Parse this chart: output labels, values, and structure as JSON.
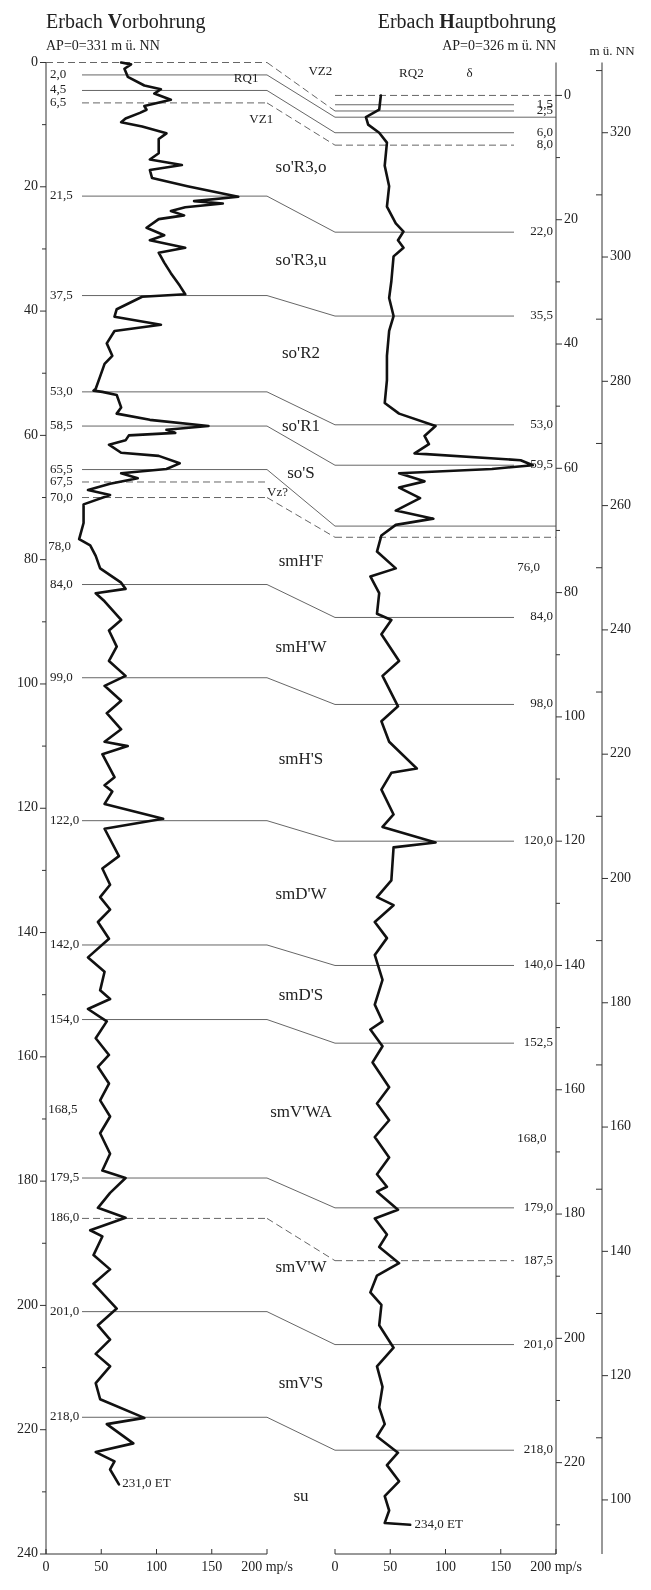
{
  "chart_data": [
    {
      "type": "line",
      "title": "Erbach Vorbohrung",
      "subtitle": "AP=0=331 m ü. NN",
      "xlim": [
        0,
        200
      ],
      "xticks": [
        0,
        50,
        100,
        150,
        {
          "value": 200,
          "label": "200 mp/s"
        }
      ],
      "ylim": [
        240,
        0
      ],
      "yticks": [
        0,
        {
          "value": 10,
          "label": null
        },
        20,
        {
          "value": 30,
          "label": null
        },
        40,
        {
          "value": 50,
          "label": null
        },
        60,
        {
          "value": 70,
          "label": null
        },
        80,
        {
          "value": 90,
          "label": null
        },
        100,
        {
          "value": 110,
          "label": null
        },
        120,
        {
          "value": 130,
          "label": null
        },
        140,
        {
          "value": 150,
          "label": null
        },
        160,
        {
          "value": 170,
          "label": null
        },
        180,
        {
          "value": 190,
          "label": null
        },
        200,
        {
          "value": 210,
          "label": null
        },
        220,
        {
          "value": 230,
          "label": null
        },
        240
      ],
      "series": [
        {
          "color": "#111111",
          "x": [
            68,
            77,
            71,
            74,
            89,
            104,
            98,
            113,
            89,
            91,
            85,
            72,
            68,
            87,
            109,
            102,
            102,
            94,
            123,
            94,
            96,
            128,
            174,
            134,
            160,
            126,
            113,
            125,
            102,
            91,
            107,
            94,
            126,
            102,
            107,
            113,
            121,
            126,
            87,
            64,
            62,
            104,
            62,
            55,
            60,
            53,
            49,
            45,
            43,
            51,
            64,
            68,
            64,
            94,
            147,
            109,
            117,
            75,
            72,
            57,
            68,
            102,
            121,
            109,
            68,
            83,
            58,
            38,
            58,
            34,
            34,
            30,
            40,
            45,
            49,
            68,
            72,
            45,
            53,
            68,
            57,
            64,
            57,
            72,
            53,
            68,
            55,
            68,
            53,
            74,
            51,
            62,
            53,
            60,
            53,
            106,
            53,
            66,
            51,
            58,
            49,
            58,
            47,
            57,
            38,
            53,
            49,
            58,
            38,
            55,
            45,
            57,
            47,
            57,
            49,
            58,
            49,
            58,
            51,
            72,
            58,
            47,
            72,
            40,
            51,
            43,
            58,
            43,
            64,
            47,
            58,
            45,
            58,
            45,
            49,
            89,
            55,
            79,
            45,
            62,
            58,
            66
          ],
          "values": [
            0,
            0.3,
            1,
            2.3,
            3.7,
            4.3,
            5,
            6,
            7,
            7.6,
            8.1,
            9,
            9.6,
            10.3,
            11.4,
            12.3,
            14.6,
            15.6,
            16.5,
            17.3,
            18.6,
            19.9,
            21.6,
            22.3,
            22.7,
            23.3,
            23.9,
            24.6,
            25.2,
            26.6,
            27.8,
            28.6,
            29.8,
            30.6,
            32.2,
            33.9,
            35.9,
            37.3,
            37.7,
            39.7,
            40.9,
            42.2,
            43.2,
            45.2,
            47.2,
            48.5,
            50.5,
            52.5,
            52.8,
            53,
            53.5,
            55.5,
            56.5,
            57.5,
            58.5,
            59.1,
            59.6,
            60,
            60.8,
            61.5,
            62.8,
            63.3,
            64.5,
            65.4,
            66.1,
            66.9,
            67.8,
            68.8,
            69.6,
            71.1,
            74.1,
            76.7,
            77.7,
            79.4,
            81.4,
            83.7,
            84.7,
            85.4,
            86.7,
            89.7,
            91.4,
            94,
            96.3,
            98.7,
            100.3,
            102.7,
            104.7,
            107.3,
            109.3,
            110,
            111.3,
            115,
            116.3,
            117.3,
            119.3,
            121.7,
            123.3,
            127.7,
            129.7,
            132.3,
            134.3,
            136.3,
            138.3,
            141,
            144,
            146.3,
            149.3,
            150.7,
            152.3,
            154.3,
            157,
            159.7,
            161.6,
            164.3,
            167,
            169.6,
            172.3,
            175.6,
            178.3,
            179.5,
            181.9,
            184.3,
            185.9,
            187.9,
            188.9,
            191.9,
            194.2,
            196.5,
            200.5,
            203.2,
            205.5,
            207.8,
            209.8,
            212.5,
            215.1,
            218.1,
            219.1,
            222.2,
            223.6,
            225.1,
            226.4,
            228.8
          ]
        }
      ],
      "ref_lines": [
        {
          "axis": "y",
          "value": 0,
          "label": null,
          "line_style": "dashed"
        },
        {
          "axis": "y",
          "value": 2,
          "label": "2,0"
        },
        {
          "axis": "y",
          "value": 4.5,
          "label": "4,5"
        },
        {
          "axis": "y",
          "value": 6.5,
          "label": "6,5",
          "line_style": "dashed"
        },
        {
          "axis": "y",
          "value": 21.5,
          "label": "21,5"
        },
        {
          "axis": "y",
          "value": 37.5,
          "label": "37,5"
        },
        {
          "axis": "y",
          "value": 53,
          "label": "53,0"
        },
        {
          "axis": "y",
          "value": 58.5,
          "label": "58,5"
        },
        {
          "axis": "y",
          "value": 65.5,
          "label": "65,5"
        },
        {
          "axis": "y",
          "value": 70,
          "label": "70,0",
          "line_style": "dashed"
        },
        {
          "axis": "y",
          "value": 84,
          "label": "84,0"
        },
        {
          "axis": "y",
          "value": 99,
          "label": "99,0"
        },
        {
          "axis": "y",
          "value": 122,
          "label": "122,0"
        },
        {
          "axis": "y",
          "value": 142,
          "label": "142,0"
        },
        {
          "axis": "y",
          "value": 154,
          "label": "154,0"
        },
        {
          "axis": "y",
          "value": 179.5,
          "label": "179,5"
        },
        {
          "axis": "y",
          "value": 186,
          "label": "186,0",
          "line_style": "dashed"
        },
        {
          "axis": "y",
          "value": 201,
          "label": "201,0"
        },
        {
          "axis": "y",
          "value": 218,
          "label": "218,0"
        },
        {
          "axis": "y",
          "value": 67.5,
          "label": "67,5",
          "line_style": "dashed"
        }
      ],
      "annotations": [
        "78,0",
        "168,5",
        {
          "text": "231,0 ET",
          "x": 69,
          "y": 228.8
        },
        "RQ1",
        "VZ1",
        "Vz?",
        "so'R3,o",
        "so'R3,u",
        "so'R2",
        "so'R1",
        "so'S",
        "smH'F",
        "smH'W",
        "smH'S",
        "smD'W",
        "smD'S",
        "smV'WA",
        "smV'W",
        "smV'S",
        "su"
      ]
    },
    {
      "type": "line",
      "title": "Erbach Hauptbohrung",
      "subtitle": "AP=0=326 m ü. NN",
      "xlim": [
        0,
        200
      ],
      "xticks": [
        0,
        50,
        100,
        150,
        {
          "value": 200,
          "label": "200 mp/s"
        }
      ],
      "ylim": [
        234.7,
        -5.3
      ],
      "yticks": [
        0,
        {
          "value": 10,
          "label": null
        },
        20,
        {
          "value": 30,
          "label": null
        },
        40,
        {
          "value": 50,
          "label": null
        },
        60,
        {
          "value": 70,
          "label": null
        },
        80,
        {
          "value": 90,
          "label": null
        },
        100,
        {
          "value": 110,
          "label": null
        },
        120,
        {
          "value": 130,
          "label": null
        },
        140,
        {
          "value": 150,
          "label": null
        },
        160,
        {
          "value": 170,
          "label": null
        },
        180,
        {
          "value": 190,
          "label": null
        },
        200,
        {
          "value": 210,
          "label": null
        },
        220,
        {
          "value": 230,
          "label": null
        }
      ],
      "y2label": "m ü. NN",
      "y2lim": [
        91.3,
        331.3
      ],
      "y2ticks": [
        100,
        120,
        140,
        160,
        180,
        200,
        220,
        240,
        260,
        280,
        300,
        320
      ],
      "series": [
        {
          "color": "#111111",
          "x": [
            41.5,
            40,
            28,
            30,
            40,
            47,
            45,
            49,
            47,
            55,
            62,
            57,
            62,
            53,
            51,
            49,
            53,
            49,
            47,
            47,
            45,
            58,
            91,
            81,
            85,
            72,
            168,
            179,
            142,
            58,
            81,
            58,
            77,
            55,
            89,
            55,
            42,
            38,
            55,
            32,
            40,
            38,
            51,
            42,
            58,
            43,
            57,
            42,
            49,
            74,
            51,
            42,
            53,
            43,
            91,
            53,
            51,
            38,
            53,
            36,
            47,
            36,
            43,
            36,
            43,
            32,
            43,
            34,
            49,
            38,
            49,
            36,
            49,
            38,
            47,
            38,
            57,
            36,
            47,
            40,
            58,
            38,
            32,
            42,
            40,
            53,
            38,
            43,
            40,
            45,
            38,
            57,
            47,
            58,
            45,
            49,
            45,
            68
          ],
          "values": [
            0,
            2.3,
            3.5,
            4.7,
            6,
            7.6,
            11.3,
            14.6,
            17.9,
            20.6,
            21.9,
            23.3,
            24.5,
            25.9,
            29.9,
            32.6,
            35.5,
            37.9,
            41.9,
            45.8,
            49.5,
            51.2,
            53.2,
            54.8,
            56.1,
            57.6,
            58.7,
            59.5,
            60.1,
            60.8,
            62.1,
            63.1,
            64.8,
            66.8,
            68.1,
            69.1,
            70.8,
            73.4,
            76.1,
            77.4,
            80.1,
            83.4,
            84.4,
            86.7,
            91,
            93.4,
            98.3,
            100.7,
            104,
            108.3,
            109,
            111.7,
            115.7,
            117.7,
            120.2,
            121,
            126.3,
            129,
            130.3,
            133,
            135.6,
            138.3,
            142.3,
            146.3,
            149,
            150.3,
            153,
            155.6,
            159.6,
            162.2,
            164.9,
            167.6,
            170.9,
            173.6,
            175.6,
            176.4,
            179.3,
            180.7,
            183.3,
            185.3,
            187.9,
            189.9,
            192.6,
            194.6,
            197.9,
            201.5,
            204.5,
            207.8,
            211.1,
            213.8,
            215.8,
            218.4,
            220.4,
            223,
            225.4,
            227.7,
            229.7,
            230
          ]
        }
      ],
      "ref_lines": [
        {
          "axis": "y",
          "value": 2.5,
          "label": "2,5"
        },
        {
          "axis": "y",
          "value": 3.5,
          "label": null
        },
        {
          "axis": "y",
          "value": 6,
          "label": "6,0"
        },
        {
          "axis": "y",
          "value": 8,
          "label": "8,0",
          "line_style": "dashed"
        },
        {
          "axis": "y",
          "value": 22,
          "label": "22,0"
        },
        {
          "axis": "y",
          "value": 35.5,
          "label": "35,5"
        },
        {
          "axis": "y",
          "value": 53,
          "label": "53,0"
        },
        {
          "axis": "y",
          "value": 59.5,
          "label": "59,5"
        },
        {
          "axis": "y",
          "value": 69.3,
          "label": null
        },
        {
          "axis": "y",
          "value": 71.1,
          "label": null,
          "line_style": "dashed"
        },
        {
          "axis": "y",
          "value": 84,
          "label": "84,0"
        },
        {
          "axis": "y",
          "value": 98,
          "label": "98,0"
        },
        {
          "axis": "y",
          "value": 120,
          "label": "120,0"
        },
        {
          "axis": "y",
          "value": 140,
          "label": "140,0"
        },
        {
          "axis": "y",
          "value": 152.5,
          "label": "152,5"
        },
        {
          "axis": "y",
          "value": 179,
          "label": "179,0"
        },
        {
          "axis": "y",
          "value": 187.5,
          "label": "187,5",
          "line_style": "dashed"
        },
        {
          "axis": "y",
          "value": 201,
          "label": "201,0"
        },
        {
          "axis": "y",
          "value": 218,
          "label": "218,0"
        },
        {
          "axis": "y",
          "value": 0,
          "label": null,
          "line_style": "dashed"
        },
        {
          "axis": "y",
          "value": 1.5,
          "label": "1,5"
        }
      ],
      "annotations": [
        "76,0",
        "168,0",
        {
          "text": "234,0 ET",
          "x": 72,
          "y": 230
        },
        "VZ2",
        "RQ2",
        "δ"
      ]
    }
  ]
}
